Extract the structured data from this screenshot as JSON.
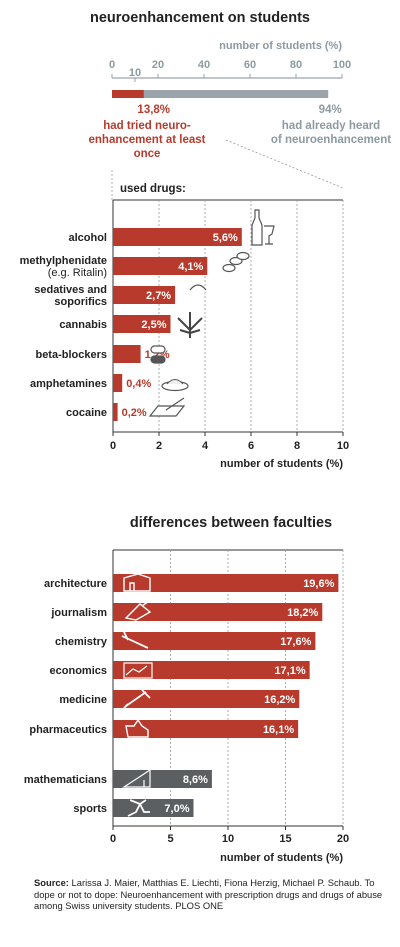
{
  "colors": {
    "red": "#b83a2c",
    "gray": "#9aa4aa",
    "dark_gray": "#5b5f61",
    "text_red": "#b83a2c",
    "text_gray": "#8c9aa2"
  },
  "chart_data": [
    {
      "type": "bar",
      "title": "neuroenhancement on students",
      "xlabel": "number of students (%)",
      "xlim": [
        0,
        100
      ],
      "ticks": [
        "0",
        "10",
        "20",
        "40",
        "60",
        "80",
        "100"
      ],
      "tick_values": [
        0,
        10,
        20,
        40,
        60,
        80,
        100
      ],
      "series": [
        {
          "value": 13.8,
          "label": "13,8%",
          "text": "had tried neuro-enhancement at least once"
        },
        {
          "value": 94,
          "label": "94%",
          "text": "had already heard of neuroenhancement"
        }
      ]
    },
    {
      "type": "bar",
      "title": "used drugs:",
      "xlabel": "number of students (%)",
      "xlim": [
        0,
        10
      ],
      "ticks": [
        "0",
        "2",
        "4",
        "6",
        "8",
        "10"
      ],
      "tick_values": [
        0,
        2,
        4,
        6,
        8,
        10
      ],
      "categories": [
        "alcohol",
        "methylphenidate (e.g. Ritalin)",
        "sedatives and soporifics",
        "cannabis",
        "beta-blockers",
        "amphetamines",
        "cocaine"
      ],
      "category_lines": [
        [
          "alcohol"
        ],
        [
          "methylphenidate",
          "(e.g. Ritalin)"
        ],
        [
          "sedatives and",
          "soporifics"
        ],
        [
          "cannabis"
        ],
        [
          "beta-blockers"
        ],
        [
          "amphetamines"
        ],
        [
          "cocaine"
        ]
      ],
      "values": [
        5.6,
        4.1,
        2.7,
        2.5,
        1.2,
        0.4,
        0.2
      ],
      "labels": [
        "5,6%",
        "4,1%",
        "2,7%",
        "2,5%",
        "1,2%",
        "0,4%",
        "0,2%"
      ],
      "icons": [
        "wine-bottle-glass-icon",
        "pills-icon",
        "capsules-icon",
        "cannabis-leaf-icon",
        "pill-capsule-icon",
        "powder-dish-icon",
        "razor-mirror-icon"
      ]
    },
    {
      "type": "bar",
      "title": "differences between faculties",
      "xlabel": "number of students (%)",
      "xlim": [
        0,
        20
      ],
      "ticks": [
        "0",
        "5",
        "10",
        "15",
        "20"
      ],
      "tick_values": [
        0,
        5,
        10,
        15,
        20
      ],
      "categories": [
        "architecture",
        "journalism",
        "chemistry",
        "economics",
        "medicine",
        "pharmaceutics",
        "mathematicians",
        "sports"
      ],
      "values": [
        19.6,
        18.2,
        17.6,
        17.1,
        16.2,
        16.1,
        8.6,
        7.0
      ],
      "labels": [
        "19,6%",
        "18,2%",
        "17,6%",
        "17,1%",
        "16,2%",
        "16,1%",
        "8,6%",
        "7,0%"
      ],
      "groups": [
        "red",
        "red",
        "red",
        "red",
        "red",
        "red",
        "dark",
        "dark"
      ],
      "icons": [
        "building-icon",
        "pen-paper-icon",
        "test-tube-icon",
        "line-chart-icon",
        "syringe-icon",
        "mortar-flask-icon",
        "triangle-ruler-icon",
        "runner-icon"
      ]
    }
  ],
  "source": {
    "label": "Source:",
    "text": "Larissa J. Maier, Matthias E. Liechti, Fiona Herzig, Michael P. Schaub. To dope or not to dope: Neuroenhancement with prescription drugs and drugs of abuse among Swiss university students. PLOS ONE"
  }
}
